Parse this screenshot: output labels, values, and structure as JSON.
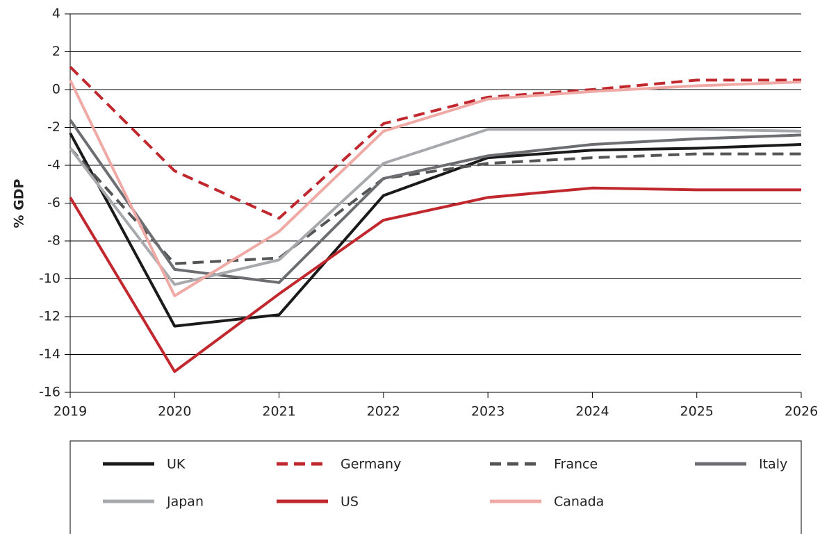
{
  "chart_data": {
    "type": "line",
    "y_label": "% GDP",
    "x": [
      2019,
      2020,
      2021,
      2022,
      2023,
      2024,
      2025,
      2026
    ],
    "xlim": [
      2019,
      2026
    ],
    "xticks": [
      2019,
      2020,
      2021,
      2022,
      2023,
      2024,
      2025,
      2026
    ],
    "ylim": [
      -16,
      4
    ],
    "yticks": [
      -16,
      -14,
      -12,
      -10,
      -8,
      -6,
      -4,
      -2,
      0,
      2,
      4
    ],
    "grid": true,
    "legend": "bottom",
    "series": [
      {
        "name": "UK",
        "color": "#1a1a1a",
        "dash": false,
        "values": [
          -2.3,
          -12.5,
          -11.9,
          -5.6,
          -3.6,
          -3.2,
          -3.1,
          -2.9
        ]
      },
      {
        "name": "Germany",
        "color": "#c0282e",
        "dash": true,
        "values": [
          1.2,
          -4.3,
          -6.8,
          -1.8,
          -0.4,
          0.0,
          0.5,
          0.5
        ]
      },
      {
        "name": "France",
        "color": "#555555",
        "dash": true,
        "values": [
          -3.1,
          -9.2,
          -8.9,
          -4.7,
          -3.9,
          -3.6,
          -3.4,
          -3.4
        ]
      },
      {
        "name": "Italy",
        "color": "#6d6e71",
        "dash": false,
        "values": [
          -1.6,
          -9.5,
          -10.2,
          -4.7,
          -3.5,
          -2.9,
          -2.6,
          -2.4
        ]
      },
      {
        "name": "Japan",
        "color": "#a7a9ac",
        "dash": false,
        "values": [
          -3.1,
          -10.3,
          -9.0,
          -3.9,
          -2.1,
          -2.1,
          -2.1,
          -2.2
        ]
      },
      {
        "name": "US",
        "color": "#c0282e",
        "dash": false,
        "values": [
          -5.7,
          -14.9,
          -10.8,
          -6.9,
          -5.7,
          -5.2,
          -5.3,
          -5.3
        ]
      },
      {
        "name": "Canada",
        "color": "#f0aaa6",
        "dash": false,
        "values": [
          0.5,
          -10.9,
          -7.5,
          -2.2,
          -0.5,
          -0.1,
          0.2,
          0.4
        ]
      }
    ]
  }
}
